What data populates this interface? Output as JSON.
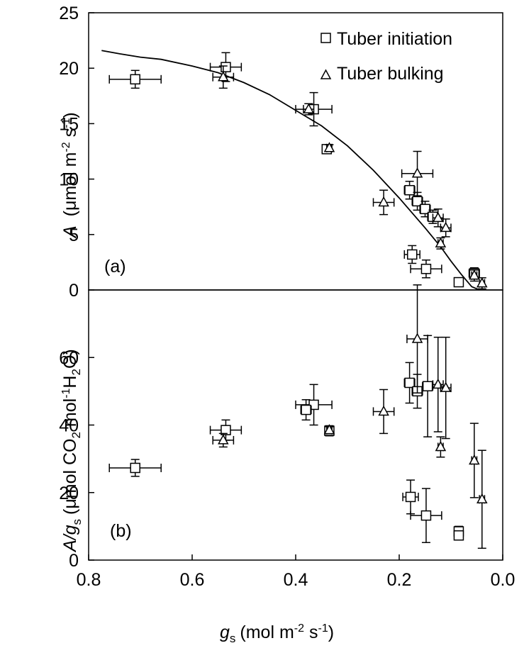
{
  "chart_data": [
    {
      "panel": "(a)",
      "type": "scatter",
      "x_reversed": true,
      "xlim": [
        0.0,
        0.8
      ],
      "ylim": [
        0,
        25
      ],
      "yticks": [
        "0",
        "5",
        "10",
        "15",
        "20",
        "25"
      ],
      "ylabel_var": "A",
      "ylabel_rest": "(μmol m-2 s-1)",
      "legend": [
        "Tuber initiation",
        "Tuber bulking"
      ],
      "legend_position": "top-right",
      "series": [
        {
          "name": "Tuber initiation",
          "marker": "square",
          "points": [
            {
              "x": 0.71,
              "y": 19.0,
              "xerr": 0.05,
              "yerr": 0.8
            },
            {
              "x": 0.535,
              "y": 20.1,
              "xerr": 0.03,
              "yerr": 1.3
            },
            {
              "x": 0.365,
              "y": 16.3,
              "xerr": 0.035,
              "yerr": 1.5
            },
            {
              "x": 0.34,
              "y": 12.7,
              "xerr": 0.005,
              "yerr": 0.3
            },
            {
              "x": 0.18,
              "y": 9.0,
              "xerr": 0.01,
              "yerr": 0.8
            },
            {
              "x": 0.165,
              "y": 8.0,
              "xerr": 0.01,
              "yerr": 0.8
            },
            {
              "x": 0.15,
              "y": 7.3,
              "xerr": 0.01,
              "yerr": 0.7
            },
            {
              "x": 0.135,
              "y": 6.6,
              "xerr": 0.01,
              "yerr": 0.6
            },
            {
              "x": 0.175,
              "y": 3.2,
              "xerr": 0.015,
              "yerr": 0.8
            },
            {
              "x": 0.148,
              "y": 1.9,
              "xerr": 0.03,
              "yerr": 0.8
            },
            {
              "x": 0.085,
              "y": 0.7,
              "xerr": 0.005,
              "yerr": 0.3
            },
            {
              "x": 0.055,
              "y": 1.5,
              "xerr": 0.01,
              "yerr": 0.5
            }
          ]
        },
        {
          "name": "Tuber bulking",
          "marker": "triangle",
          "points": [
            {
              "x": 0.54,
              "y": 19.2,
              "xerr": 0.02,
              "yerr": 1.0
            },
            {
              "x": 0.375,
              "y": 16.3,
              "xerr": 0.01,
              "yerr": 0.5
            },
            {
              "x": 0.335,
              "y": 12.8,
              "xerr": 0.005,
              "yerr": 0.3
            },
            {
              "x": 0.23,
              "y": 7.9,
              "xerr": 0.02,
              "yerr": 1.1
            },
            {
              "x": 0.165,
              "y": 10.5,
              "xerr": 0.03,
              "yerr": 2.0
            },
            {
              "x": 0.125,
              "y": 6.5,
              "xerr": 0.01,
              "yerr": 0.8
            },
            {
              "x": 0.11,
              "y": 5.6,
              "xerr": 0.01,
              "yerr": 0.8
            },
            {
              "x": 0.12,
              "y": 4.2,
              "xerr": 0.005,
              "yerr": 0.5
            },
            {
              "x": 0.055,
              "y": 1.3,
              "xerr": 0.005,
              "yerr": 0.5
            },
            {
              "x": 0.04,
              "y": 0.6,
              "xerr": 0.005,
              "yerr": 0.5
            }
          ]
        }
      ],
      "fit_curve": {
        "x": [
          0.775,
          0.74,
          0.7,
          0.66,
          0.6,
          0.55,
          0.5,
          0.45,
          0.4,
          0.35,
          0.3,
          0.25,
          0.2,
          0.15,
          0.12,
          0.1,
          0.08,
          0.06,
          0.045
        ],
        "y": [
          21.6,
          21.3,
          21.0,
          20.8,
          20.2,
          19.6,
          18.7,
          17.6,
          16.2,
          14.8,
          13.0,
          10.8,
          8.3,
          5.6,
          3.9,
          2.6,
          1.4,
          0.3,
          -0.5
        ]
      }
    },
    {
      "panel": "(b)",
      "type": "scatter",
      "x_reversed": true,
      "xlim": [
        0.0,
        0.8
      ],
      "ylim": [
        0,
        80
      ],
      "yticks": [
        "0",
        "20",
        "40",
        "60"
      ],
      "xticks": [
        "0.8",
        "0.6",
        "0.4",
        "0.2",
        "0.0"
      ],
      "xlabel_var": "g",
      "xlabel_sub": "s",
      "xlabel_rest": "(mol m-2 s-1)",
      "ylabel_var": "A/g",
      "ylabel_sub": "s",
      "ylabel_rest": "(μmol CO2 mol-1H2O)",
      "series": [
        {
          "name": "Tuber initiation",
          "marker": "square",
          "points": [
            {
              "x": 0.71,
              "y": 27.3,
              "xerr": 0.05,
              "yerr": 2.5
            },
            {
              "x": 0.535,
              "y": 38.5,
              "xerr": 0.03,
              "yerr": 3.0
            },
            {
              "x": 0.365,
              "y": 46.0,
              "xerr": 0.035,
              "yerr": 6.0
            },
            {
              "x": 0.38,
              "y": 44.5,
              "xerr": 0.01,
              "yerr": 3.0
            },
            {
              "x": 0.335,
              "y": 38.3,
              "xerr": 0.005,
              "yerr": 1.5
            },
            {
              "x": 0.18,
              "y": 52.5,
              "xerr": 0.01,
              "yerr": 6.0
            },
            {
              "x": 0.165,
              "y": 50.0,
              "xerr": 0.01,
              "yerr": 5.0
            },
            {
              "x": 0.145,
              "y": 51.5,
              "xerr": 0.01,
              "yerr": 15.0
            },
            {
              "x": 0.178,
              "y": 18.7,
              "xerr": 0.015,
              "yerr": 5.0
            },
            {
              "x": 0.148,
              "y": 13.2,
              "xerr": 0.03,
              "yerr": 8.0
            },
            {
              "x": 0.085,
              "y": 8.5,
              "xerr": 0.005,
              "yerr": 1.5
            },
            {
              "x": 0.085,
              "y": 7.3,
              "xerr": 0.005,
              "yerr": 1.0
            }
          ]
        },
        {
          "name": "Tuber bulking",
          "marker": "triangle",
          "points": [
            {
              "x": 0.54,
              "y": 35.5,
              "xerr": 0.02,
              "yerr": 2.0
            },
            {
              "x": 0.335,
              "y": 38.5,
              "xerr": 0.005,
              "yerr": 1.0
            },
            {
              "x": 0.23,
              "y": 44.0,
              "xerr": 0.02,
              "yerr": 6.5
            },
            {
              "x": 0.165,
              "y": 65.5,
              "xerr": 0.02,
              "yerr": 16.0
            },
            {
              "x": 0.125,
              "y": 52.0,
              "xerr": 0.01,
              "yerr": 14.0
            },
            {
              "x": 0.11,
              "y": 51.0,
              "xerr": 0.01,
              "yerr": 15.0
            },
            {
              "x": 0.12,
              "y": 33.5,
              "xerr": 0.005,
              "yerr": 3.0
            },
            {
              "x": 0.055,
              "y": 29.5,
              "xerr": 0.005,
              "yerr": 11.0
            },
            {
              "x": 0.04,
              "y": 18.0,
              "xerr": 0.005,
              "yerr": 14.5
            }
          ]
        }
      ]
    }
  ]
}
